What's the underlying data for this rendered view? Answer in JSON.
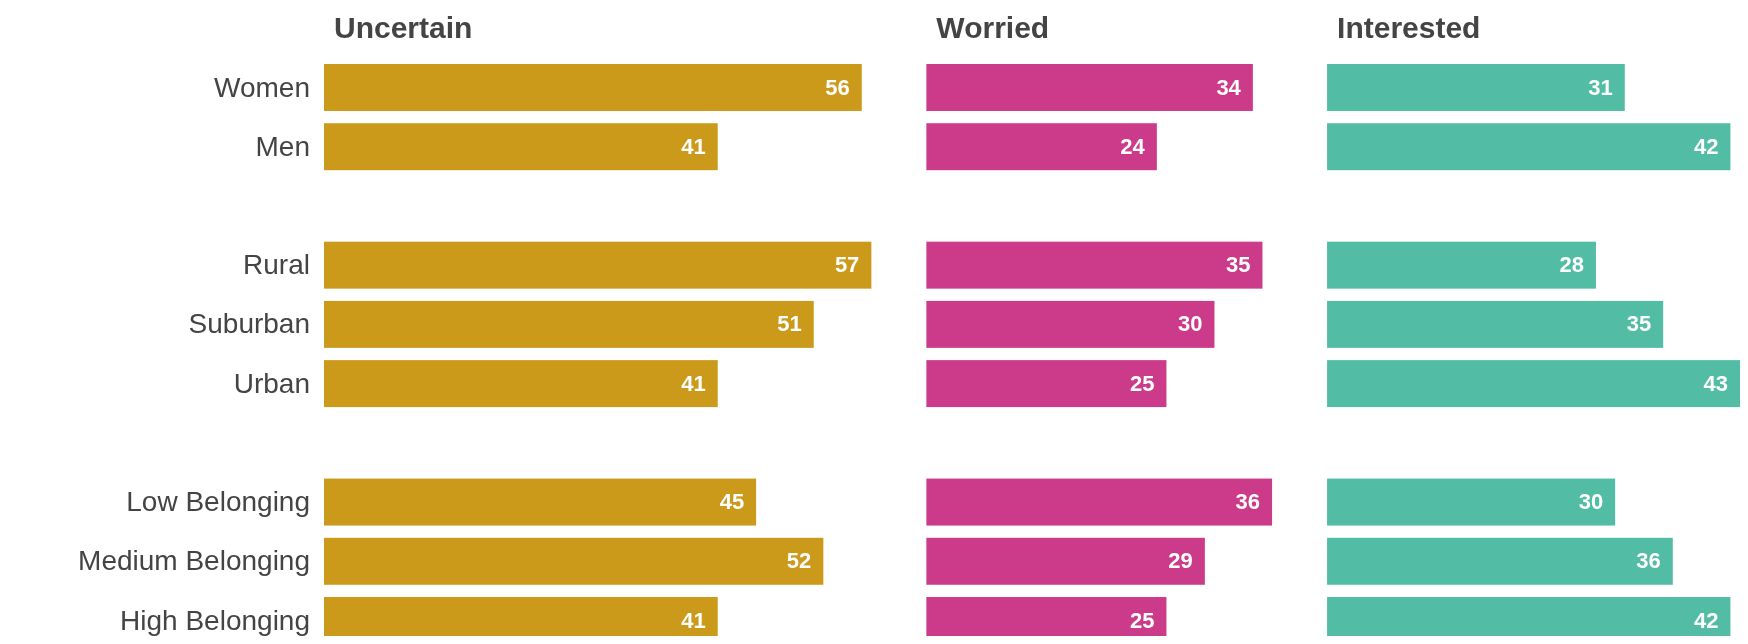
{
  "chart_data": [
    {
      "type": "bar",
      "orientation": "horizontal",
      "title": "Uncertain",
      "categories": [
        "Women",
        "Men",
        null,
        "Rural",
        "Suburban",
        "Urban",
        null,
        "Low Belonging",
        "Medium Belonging",
        "High Belonging"
      ],
      "values": [
        56,
        41,
        null,
        57,
        51,
        41,
        null,
        45,
        52,
        41
      ],
      "color": "#cc9a1a",
      "data_labels": true,
      "tick_labels": "y"
    },
    {
      "type": "bar",
      "orientation": "horizontal",
      "title": "Worried",
      "values": [
        34,
        24,
        null,
        35,
        30,
        25,
        null,
        36,
        29,
        25
      ],
      "color": "#cc3a8a",
      "data_labels": true,
      "tick_labels": false
    },
    {
      "type": "bar",
      "orientation": "horizontal",
      "title": "Interested",
      "values": [
        31,
        42,
        null,
        28,
        35,
        43,
        null,
        30,
        36,
        42
      ],
      "color": "#52bda4",
      "data_labels": true,
      "tick_labels": false
    }
  ]
}
